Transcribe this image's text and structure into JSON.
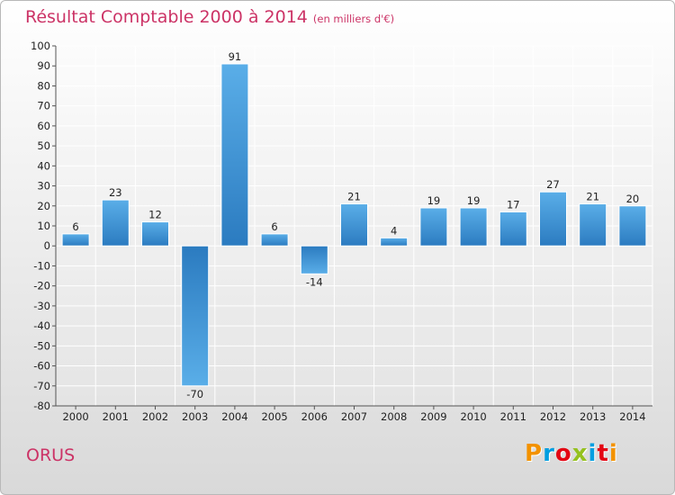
{
  "header": {
    "title": "Résultat Comptable 2000 à 2014",
    "subtitle": "(en milliers d'€)"
  },
  "footer": {
    "town": "ORUS",
    "logo": "Proxiti",
    "logo_letters": [
      {
        "ch": "P",
        "color": "#f39200"
      },
      {
        "ch": "r",
        "color": "#009ee0"
      },
      {
        "ch": "o",
        "color": "#e30613"
      },
      {
        "ch": "x",
        "color": "#95c11f"
      },
      {
        "ch": "i",
        "color": "#009ee0"
      },
      {
        "ch": "t",
        "color": "#e30613"
      },
      {
        "ch": "i",
        "color": "#f39200"
      }
    ]
  },
  "colors": {
    "accent": "#cc3366",
    "bar_light": "#5aaee8",
    "bar_dark": "#2b7bc0"
  },
  "chart_data": {
    "type": "bar",
    "title": "Résultat Comptable 2000 à 2014",
    "subtitle": "(en milliers d'€)",
    "categories": [
      "2000",
      "2001",
      "2002",
      "2003",
      "2004",
      "2005",
      "2006",
      "2007",
      "2008",
      "2009",
      "2010",
      "2011",
      "2012",
      "2013",
      "2014"
    ],
    "values": [
      6,
      23,
      12,
      -70,
      91,
      6,
      -14,
      21,
      4,
      19,
      19,
      17,
      27,
      21,
      20
    ],
    "value_labels": [
      "6",
      "23",
      "12",
      "-70",
      "91",
      "6",
      "-14",
      "21",
      "4",
      "19",
      "19",
      "17",
      "27",
      "21",
      "20"
    ],
    "ylim": [
      -80,
      100
    ],
    "yticks": [
      100,
      90,
      80,
      70,
      60,
      50,
      40,
      30,
      20,
      10,
      0,
      -10,
      -20,
      -30,
      -40,
      -50,
      -60,
      -70,
      -80
    ],
    "xlabel": "",
    "ylabel": "",
    "grid": true
  }
}
